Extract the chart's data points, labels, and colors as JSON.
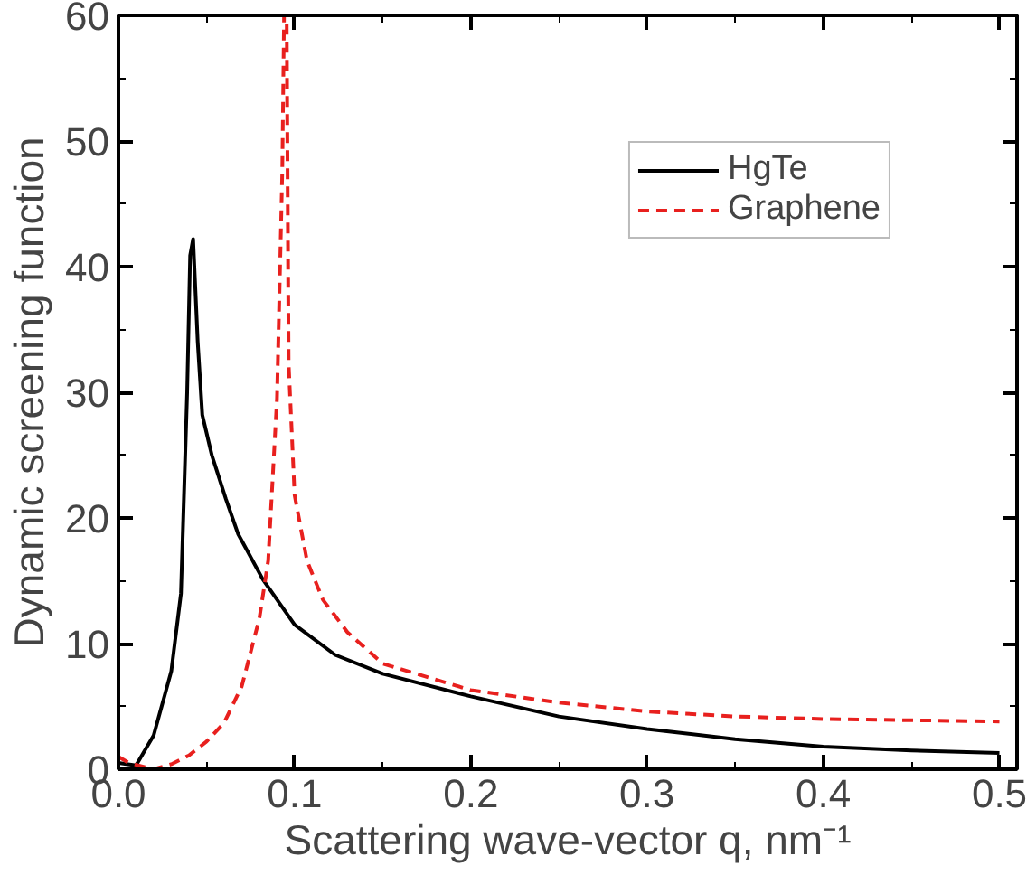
{
  "chart_data": {
    "type": "line",
    "xlabel": "Scattering wave-vector q, nm⁻¹",
    "ylabel": "Dynamic screening function",
    "xlim": [
      0,
      0.51
    ],
    "ylim": [
      0,
      60
    ],
    "xticks": [
      {
        "value": 0,
        "label": "0.0"
      },
      0.1,
      0.2,
      0.3,
      0.4,
      0.5
    ],
    "yticks": [
      0,
      10,
      20,
      30,
      40,
      50,
      60
    ],
    "grid": false,
    "legend": "top right",
    "marker": "none",
    "series": [
      {
        "name": "HgTe",
        "color": "#000000",
        "line_style": "solid",
        "x": [
          0,
          0.01,
          0.02,
          0.03,
          0.0355,
          0.039,
          0.0407,
          0.0424,
          0.045,
          0.0476,
          0.053,
          0.061,
          0.068,
          0.082,
          0.1,
          0.123,
          0.15,
          0.2,
          0.25,
          0.3,
          0.35,
          0.4,
          0.45,
          0.5
        ],
        "values": [
          0.5,
          0.3,
          2.7,
          7.8,
          14,
          30,
          40.9,
          42.2,
          34,
          28.2,
          25,
          21.5,
          18.7,
          15.1,
          11.5,
          9.1,
          7.6,
          5.8,
          4.2,
          3.2,
          2.4,
          1.8,
          1.5,
          1.3
        ]
      },
      {
        "name": "Graphene",
        "color": "#e8201e",
        "line_style": "dashed",
        "x": [
          0,
          0.006,
          0.02,
          0.03,
          0.04,
          0.05,
          0.06,
          0.07,
          0.08,
          0.085,
          0.09,
          0.093,
          0.094,
          0.0955,
          0.0966,
          0.1,
          0.107,
          0.116,
          0.13,
          0.15,
          0.2,
          0.25,
          0.3,
          0.35,
          0.4,
          0.5
        ],
        "values": [
          1.0,
          0.5,
          0,
          0.4,
          1.1,
          2.2,
          3.7,
          6.6,
          12,
          16.6,
          29.5,
          47.6,
          60,
          60,
          32.3,
          21.8,
          16.6,
          13.5,
          10.9,
          8.4,
          6.3,
          5.3,
          4.6,
          4.2,
          4.0,
          3.8
        ]
      }
    ]
  }
}
